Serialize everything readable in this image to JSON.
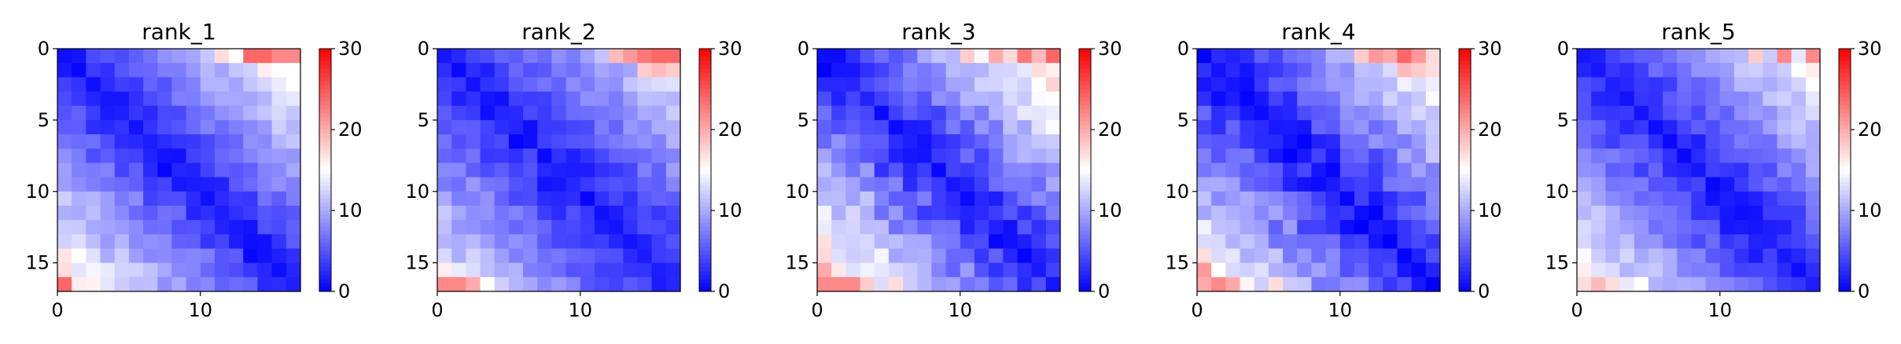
{
  "chart_data": {
    "type": "heatmap",
    "layout": "1x5 panels",
    "colormap": "bwr",
    "colormap_stops": [
      "#0000ff",
      "#ffffff",
      "#ff0000"
    ],
    "vmin": 0,
    "vmax": 30,
    "colorbar_ticks": [
      0,
      10,
      20,
      30
    ],
    "matrix_size": 17,
    "x_ticks": [
      0,
      10
    ],
    "y_ticks": [
      0,
      5,
      10,
      15
    ],
    "panels": [
      {
        "title": "rank_1",
        "diag_base": 1.5,
        "rate": 0.95,
        "noise": 1.5,
        "seed": 11,
        "hot": [
          {
            "i": 0,
            "j": 13,
            "v": 24
          },
          {
            "i": 0,
            "j": 14,
            "v": 24
          },
          {
            "i": 0,
            "j": 15,
            "v": 22
          },
          {
            "i": 0,
            "j": 16,
            "v": 22
          },
          {
            "i": 0,
            "j": 11,
            "v": 17
          },
          {
            "i": 0,
            "j": 12,
            "v": 15
          },
          {
            "i": 1,
            "j": 14,
            "v": 16
          },
          {
            "i": 1,
            "j": 15,
            "v": 15
          },
          {
            "i": 16,
            "j": 0,
            "v": 24
          },
          {
            "i": 16,
            "j": 1,
            "v": 16
          },
          {
            "i": 15,
            "j": 0,
            "v": 17
          },
          {
            "i": 14,
            "j": 1,
            "v": 15
          }
        ]
      },
      {
        "title": "rank_2",
        "diag_base": 1.5,
        "rate": 0.8,
        "noise": 1.5,
        "seed": 23,
        "hot": [
          {
            "i": 0,
            "j": 12,
            "v": 19
          },
          {
            "i": 0,
            "j": 13,
            "v": 21
          },
          {
            "i": 0,
            "j": 14,
            "v": 23
          },
          {
            "i": 0,
            "j": 15,
            "v": 24
          },
          {
            "i": 0,
            "j": 16,
            "v": 24
          },
          {
            "i": 1,
            "j": 14,
            "v": 18
          },
          {
            "i": 1,
            "j": 15,
            "v": 19
          },
          {
            "i": 1,
            "j": 16,
            "v": 18
          },
          {
            "i": 16,
            "j": 0,
            "v": 22
          },
          {
            "i": 16,
            "j": 1,
            "v": 22
          },
          {
            "i": 16,
            "j": 2,
            "v": 20
          },
          {
            "i": 16,
            "j": 3,
            "v": 15
          },
          {
            "i": 15,
            "j": 0,
            "v": 16
          }
        ]
      },
      {
        "title": "rank_3",
        "diag_base": 1.5,
        "rate": 1.05,
        "noise": 2.0,
        "seed": 37,
        "hot": [
          {
            "i": 0,
            "j": 10,
            "v": 18
          },
          {
            "i": 0,
            "j": 12,
            "v": 20
          },
          {
            "i": 0,
            "j": 14,
            "v": 23
          },
          {
            "i": 0,
            "j": 15,
            "v": 19
          },
          {
            "i": 0,
            "j": 16,
            "v": 24
          },
          {
            "i": 1,
            "j": 15,
            "v": 17
          },
          {
            "i": 2,
            "j": 15,
            "v": 15
          },
          {
            "i": 16,
            "j": 0,
            "v": 22
          },
          {
            "i": 16,
            "j": 1,
            "v": 22
          },
          {
            "i": 16,
            "j": 2,
            "v": 22
          },
          {
            "i": 16,
            "j": 3,
            "v": 18
          },
          {
            "i": 16,
            "j": 5,
            "v": 17
          },
          {
            "i": 15,
            "j": 0,
            "v": 20
          }
        ]
      },
      {
        "title": "rank_4",
        "diag_base": 1.0,
        "rate": 1.0,
        "noise": 2.0,
        "seed": 53,
        "hot": [
          {
            "i": 0,
            "j": 11,
            "v": 18
          },
          {
            "i": 0,
            "j": 12,
            "v": 21
          },
          {
            "i": 0,
            "j": 13,
            "v": 20
          },
          {
            "i": 0,
            "j": 14,
            "v": 24
          },
          {
            "i": 0,
            "j": 15,
            "v": 21
          },
          {
            "i": 1,
            "j": 14,
            "v": 19
          },
          {
            "i": 1,
            "j": 15,
            "v": 18
          },
          {
            "i": 1,
            "j": 16,
            "v": 17
          },
          {
            "i": 15,
            "j": 0,
            "v": 21
          },
          {
            "i": 16,
            "j": 0,
            "v": 20
          },
          {
            "i": 16,
            "j": 1,
            "v": 22
          },
          {
            "i": 16,
            "j": 2,
            "v": 20
          },
          {
            "i": 14,
            "j": 0,
            "v": 17
          },
          {
            "i": 16,
            "j": 5,
            "v": 17
          }
        ]
      },
      {
        "title": "rank_5",
        "diag_base": 1.5,
        "rate": 0.9,
        "noise": 1.5,
        "seed": 71,
        "hot": [
          {
            "i": 0,
            "j": 12,
            "v": 18
          },
          {
            "i": 0,
            "j": 14,
            "v": 22
          },
          {
            "i": 0,
            "j": 16,
            "v": 22
          },
          {
            "i": 1,
            "j": 15,
            "v": 15
          },
          {
            "i": 16,
            "j": 0,
            "v": 17
          },
          {
            "i": 16,
            "j": 1,
            "v": 19
          },
          {
            "i": 16,
            "j": 2,
            "v": 17
          },
          {
            "i": 16,
            "j": 4,
            "v": 15
          },
          {
            "i": 15,
            "j": 0,
            "v": 16
          }
        ]
      }
    ]
  }
}
